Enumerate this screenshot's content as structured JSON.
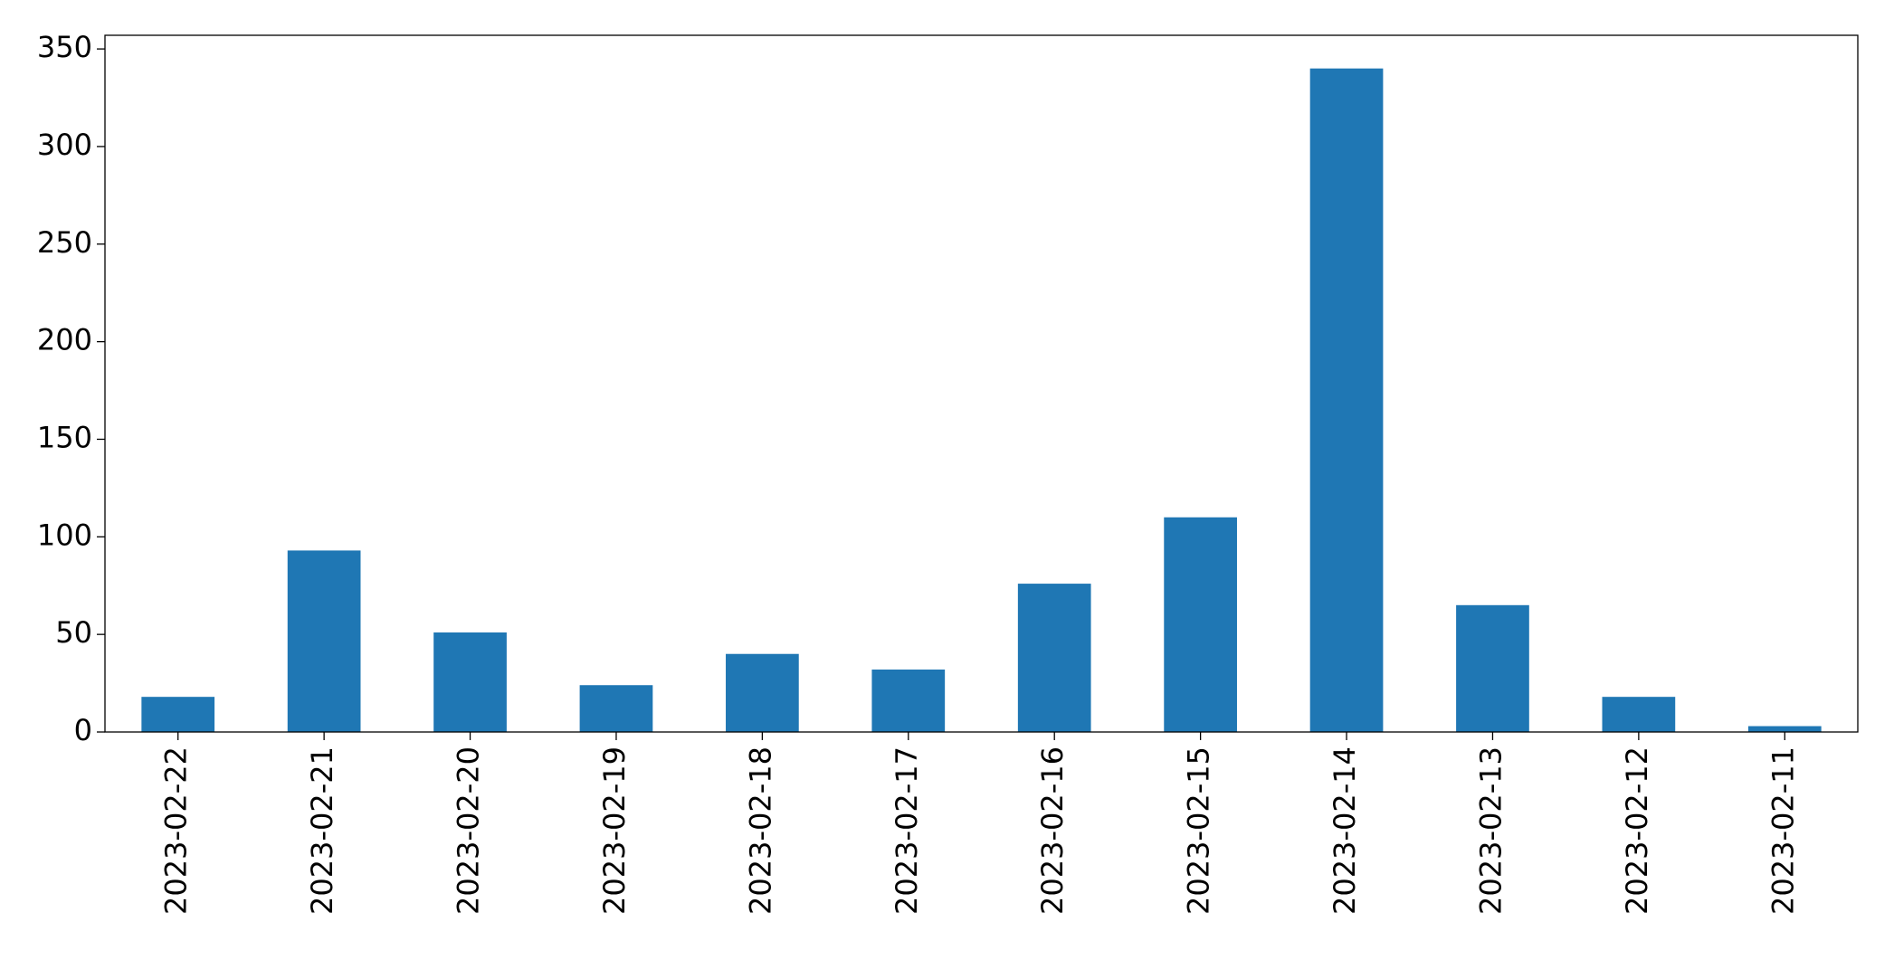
{
  "chart_data": {
    "type": "bar",
    "categories": [
      "2023-02-22",
      "2023-02-21",
      "2023-02-20",
      "2023-02-19",
      "2023-02-18",
      "2023-02-17",
      "2023-02-16",
      "2023-02-15",
      "2023-02-14",
      "2023-02-13",
      "2023-02-12",
      "2023-02-11"
    ],
    "values": [
      18,
      93,
      51,
      24,
      40,
      32,
      76,
      110,
      340,
      65,
      18,
      3
    ],
    "color": "#1f77b4",
    "ylim": [
      0,
      357
    ],
    "yticks": [
      0,
      50,
      100,
      150,
      200,
      250,
      300,
      350
    ],
    "grid": false
  }
}
